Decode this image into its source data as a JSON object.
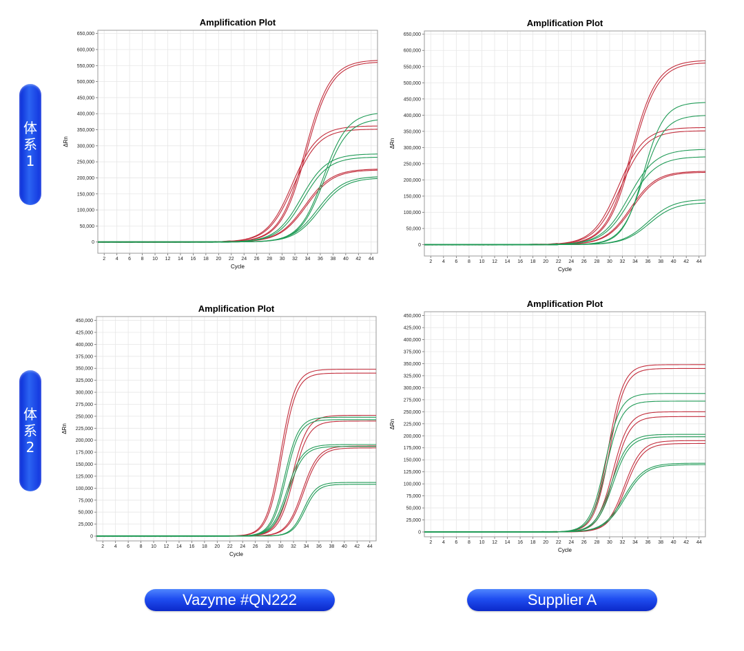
{
  "row_labels": [
    "体系1",
    "体系2"
  ],
  "column_labels": [
    "Vazyme #QN222",
    "Supplier A"
  ],
  "colors": {
    "red": "#c22b3a",
    "green": "#1e9a55",
    "pill": "#1a45e8"
  },
  "chart_data": [
    {
      "type": "line",
      "title": "Amplification Plot",
      "xlabel": "Cycle",
      "ylabel": "ΔRn",
      "xlim": [
        1,
        45
      ],
      "ylim": [
        -35000,
        660000
      ],
      "ytick_step": 50000,
      "xticks": [
        2,
        4,
        6,
        8,
        10,
        12,
        14,
        16,
        18,
        20,
        22,
        24,
        26,
        28,
        30,
        32,
        34,
        36,
        38,
        40,
        42,
        44
      ],
      "grid": true,
      "series": [
        {
          "color": "red",
          "plateau": 568000,
          "midpoint": 33.6,
          "slope": 2.0
        },
        {
          "color": "red",
          "plateau": 562000,
          "midpoint": 33.8,
          "slope": 2.0
        },
        {
          "color": "red",
          "plateau": 362000,
          "midpoint": 31.6,
          "slope": 2.0
        },
        {
          "color": "red",
          "plateau": 352000,
          "midpoint": 31.8,
          "slope": 2.0
        },
        {
          "color": "red",
          "plateau": 228000,
          "midpoint": 33.6,
          "slope": 2.1
        },
        {
          "color": "red",
          "plateau": 225000,
          "midpoint": 33.8,
          "slope": 2.1
        },
        {
          "color": "green",
          "plateau": 405000,
          "midpoint": 36.5,
          "slope": 1.9
        },
        {
          "color": "green",
          "plateau": 385000,
          "midpoint": 36.6,
          "slope": 1.9
        },
        {
          "color": "green",
          "plateau": 275000,
          "midpoint": 33.0,
          "slope": 2.0
        },
        {
          "color": "green",
          "plateau": 265000,
          "midpoint": 33.3,
          "slope": 2.0
        },
        {
          "color": "green",
          "plateau": 205000,
          "midpoint": 35.6,
          "slope": 2.0
        },
        {
          "color": "green",
          "plateau": 200000,
          "midpoint": 35.9,
          "slope": 2.0
        }
      ]
    },
    {
      "type": "line",
      "title": "Amplification Plot",
      "xlabel": "Cycle",
      "ylabel": "ΔRn",
      "xlim": [
        1,
        45
      ],
      "ylim": [
        -35000,
        660000
      ],
      "ytick_step": 50000,
      "xticks": [
        2,
        4,
        6,
        8,
        10,
        12,
        14,
        16,
        18,
        20,
        22,
        24,
        26,
        28,
        30,
        32,
        34,
        36,
        38,
        40,
        42,
        44
      ],
      "grid": true,
      "series": [
        {
          "color": "red",
          "plateau": 570000,
          "midpoint": 33.4,
          "slope": 2.0
        },
        {
          "color": "red",
          "plateau": 563000,
          "midpoint": 33.6,
          "slope": 2.0
        },
        {
          "color": "red",
          "plateau": 362000,
          "midpoint": 31.4,
          "slope": 2.0
        },
        {
          "color": "red",
          "plateau": 352000,
          "midpoint": 31.7,
          "slope": 2.0
        },
        {
          "color": "red",
          "plateau": 227000,
          "midpoint": 33.3,
          "slope": 2.0
        },
        {
          "color": "red",
          "plateau": 224000,
          "midpoint": 33.5,
          "slope": 2.0
        },
        {
          "color": "green",
          "plateau": 440000,
          "midpoint": 35.3,
          "slope": 1.6
        },
        {
          "color": "green",
          "plateau": 400000,
          "midpoint": 35.2,
          "slope": 1.7
        },
        {
          "color": "green",
          "plateau": 295000,
          "midpoint": 33.0,
          "slope": 2.1
        },
        {
          "color": "green",
          "plateau": 272000,
          "midpoint": 33.2,
          "slope": 2.1
        },
        {
          "color": "green",
          "plateau": 140000,
          "midpoint": 36.0,
          "slope": 2.0
        },
        {
          "color": "green",
          "plateau": 130000,
          "midpoint": 36.2,
          "slope": 2.0
        }
      ]
    },
    {
      "type": "line",
      "title": "Amplification Plot",
      "xlabel": "Cycle",
      "ylabel": "ΔRn",
      "xlim": [
        1,
        45
      ],
      "ylim": [
        -10000,
        458000
      ],
      "ytick_step": 25000,
      "xticks": [
        2,
        4,
        6,
        8,
        10,
        12,
        14,
        16,
        18,
        20,
        22,
        24,
        26,
        28,
        30,
        32,
        34,
        36,
        38,
        40,
        42,
        44
      ],
      "grid": true,
      "series": [
        {
          "color": "red",
          "plateau": 348000,
          "midpoint": 30.0,
          "slope": 1.15
        },
        {
          "color": "red",
          "plateau": 340000,
          "midpoint": 30.2,
          "slope": 1.15
        },
        {
          "color": "red",
          "plateau": 252000,
          "midpoint": 31.8,
          "slope": 1.2
        },
        {
          "color": "red",
          "plateau": 240000,
          "midpoint": 32.0,
          "slope": 1.2
        },
        {
          "color": "red",
          "plateau": 188000,
          "midpoint": 33.4,
          "slope": 1.25
        },
        {
          "color": "red",
          "plateau": 184000,
          "midpoint": 33.6,
          "slope": 1.25
        },
        {
          "color": "green",
          "plateau": 248000,
          "midpoint": 30.6,
          "slope": 1.1
        },
        {
          "color": "green",
          "plateau": 243000,
          "midpoint": 30.8,
          "slope": 1.1
        },
        {
          "color": "green",
          "plateau": 191000,
          "midpoint": 31.0,
          "slope": 1.2
        },
        {
          "color": "green",
          "plateau": 187000,
          "midpoint": 31.2,
          "slope": 1.2
        },
        {
          "color": "green",
          "plateau": 112000,
          "midpoint": 33.6,
          "slope": 1.0
        },
        {
          "color": "green",
          "plateau": 108000,
          "midpoint": 33.8,
          "slope": 1.0
        }
      ]
    },
    {
      "type": "line",
      "title": "Amplification Plot",
      "xlabel": "Cycle",
      "ylabel": "ΔRn",
      "xlim": [
        1,
        45
      ],
      "ylim": [
        -10000,
        458000
      ],
      "ytick_step": 25000,
      "xticks": [
        2,
        4,
        6,
        8,
        10,
        12,
        14,
        16,
        18,
        20,
        22,
        24,
        26,
        28,
        30,
        32,
        34,
        36,
        38,
        40,
        42,
        44
      ],
      "grid": true,
      "series": [
        {
          "color": "red",
          "plateau": 348000,
          "midpoint": 29.8,
          "slope": 1.2
        },
        {
          "color": "red",
          "plateau": 340000,
          "midpoint": 30.0,
          "slope": 1.2
        },
        {
          "color": "red",
          "plateau": 250000,
          "midpoint": 30.5,
          "slope": 1.25
        },
        {
          "color": "red",
          "plateau": 240000,
          "midpoint": 30.7,
          "slope": 1.25
        },
        {
          "color": "red",
          "plateau": 190000,
          "midpoint": 32.3,
          "slope": 1.35
        },
        {
          "color": "red",
          "plateau": 184000,
          "midpoint": 32.5,
          "slope": 1.35
        },
        {
          "color": "green",
          "plateau": 288000,
          "midpoint": 29.3,
          "slope": 1.2
        },
        {
          "color": "green",
          "plateau": 272000,
          "midpoint": 29.5,
          "slope": 1.2
        },
        {
          "color": "green",
          "plateau": 203000,
          "midpoint": 30.3,
          "slope": 1.3
        },
        {
          "color": "green",
          "plateau": 198000,
          "midpoint": 30.5,
          "slope": 1.3
        },
        {
          "color": "green",
          "plateau": 143000,
          "midpoint": 32.2,
          "slope": 1.6
        },
        {
          "color": "green",
          "plateau": 140000,
          "midpoint": 32.4,
          "slope": 1.6
        }
      ]
    }
  ]
}
